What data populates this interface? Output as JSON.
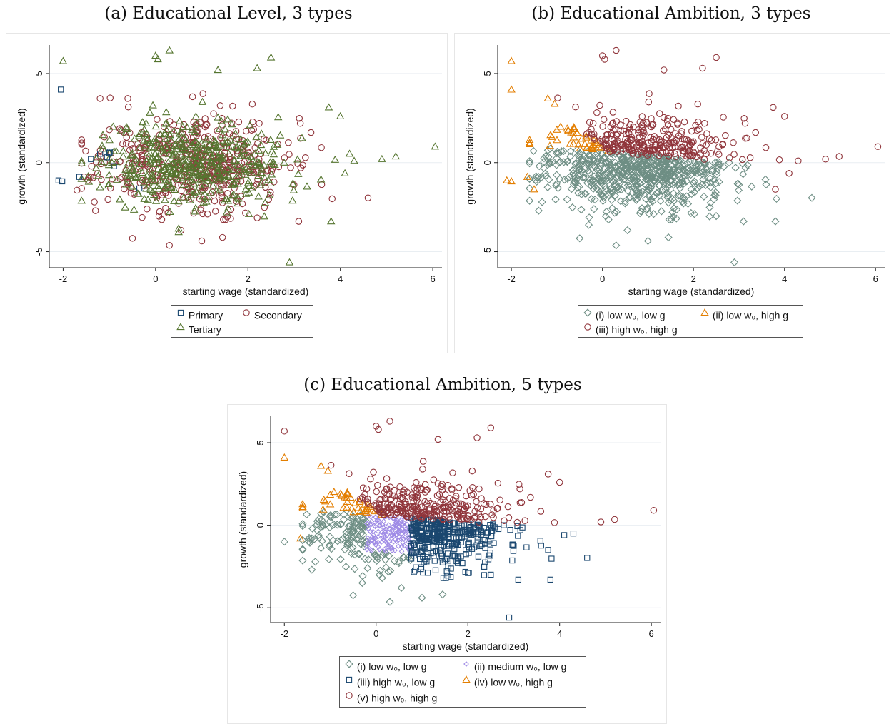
{
  "captions": {
    "a": "(a) Educational Level, 3 types",
    "b": "(b) Educational Ambition, 3 types",
    "c": "(c) Educational Ambition, 5 types"
  },
  "colors": {
    "navy": "#1a476f",
    "maroon": "#90353b",
    "olive": "#55752f",
    "orange": "#e37e00",
    "sage": "#6e8e84",
    "lavender": "#9f8be6"
  },
  "chart_data": [
    {
      "id": "a",
      "type": "scatter",
      "title": "(a) Educational Level, 3 types",
      "xlabel": "starting wage (standardized)",
      "ylabel": "growth (standardized)",
      "xlim": [
        -2.3,
        6.2
      ],
      "ylim": [
        -5.9,
        6.6
      ],
      "xticks": [
        -2,
        0,
        2,
        4,
        6
      ],
      "yticks": [
        -5,
        0,
        5
      ],
      "grid": "horizontal",
      "legend_position": "bottom",
      "series": [
        {
          "name": "Primary",
          "marker": "square",
          "color": "#1a476f",
          "points": [
            [
              -2.05,
              4.1
            ],
            [
              -2.1,
              -1.0
            ],
            [
              -2.02,
              -1.05
            ],
            [
              -1.65,
              -0.8
            ],
            [
              -1.4,
              0.2
            ],
            [
              -1.2,
              0.5
            ],
            [
              -1.05,
              0.3
            ],
            [
              -0.9,
              -0.2
            ],
            [
              -0.35,
              -1.45
            ],
            [
              -1.0,
              0.55
            ]
          ]
        },
        {
          "name": "Secondary",
          "marker": "circle",
          "color": "#90353b",
          "count": 550,
          "points": [
            [
              -0.5,
              -4.25
            ],
            [
              0.3,
              -4.65
            ],
            [
              0.55,
              -3.8
            ],
            [
              1.0,
              -4.4
            ],
            [
              1.45,
              -4.2
            ],
            [
              3.1,
              -3.3
            ],
            [
              2.2,
              -3.1
            ],
            [
              -0.6,
              3.6
            ],
            [
              -1.2,
              3.6
            ],
            [
              -1.55,
              -0.8
            ],
            [
              -1.7,
              -1.55
            ],
            [
              -1.3,
              -2.7
            ],
            [
              0.8,
              3.7
            ],
            [
              1.4,
              3.2
            ]
          ]
        },
        {
          "name": "Tertiary",
          "marker": "triangle",
          "color": "#55752f",
          "count": 600,
          "points": [
            [
              -2.0,
              5.7
            ],
            [
              0.0,
              6.0
            ],
            [
              0.05,
              5.8
            ],
            [
              0.3,
              6.3
            ],
            [
              1.35,
              5.2
            ],
            [
              2.2,
              5.3
            ],
            [
              2.5,
              5.9
            ],
            [
              6.05,
              0.9
            ],
            [
              4.9,
              0.2
            ],
            [
              5.2,
              0.35
            ],
            [
              4.0,
              2.6
            ],
            [
              3.75,
              3.1
            ],
            [
              2.9,
              -5.6
            ],
            [
              0.5,
              -3.9
            ],
            [
              0.5,
              -3.7
            ],
            [
              3.8,
              -3.3
            ],
            [
              4.2,
              0.5
            ],
            [
              4.3,
              0.1
            ],
            [
              4.1,
              -0.6
            ]
          ]
        }
      ]
    },
    {
      "id": "b",
      "type": "scatter",
      "title": "(b) Educational Ambition, 3 types",
      "xlabel": "starting wage (standardized)",
      "ylabel": "growth (standardized)",
      "xlim": [
        -2.3,
        6.2
      ],
      "ylim": [
        -5.9,
        6.6
      ],
      "xticks": [
        -2,
        0,
        2,
        4,
        6
      ],
      "yticks": [
        -5,
        0,
        5
      ],
      "grid": "horizontal",
      "legend_position": "bottom",
      "series": [
        {
          "name": "(i) low w₀, low g",
          "marker": "diamond",
          "color": "#6e8e84",
          "count": 600,
          "points": [
            [
              -0.5,
              -4.25
            ],
            [
              0.3,
              -4.65
            ],
            [
              0.55,
              -3.8
            ],
            [
              1.0,
              -4.4
            ],
            [
              1.45,
              -4.2
            ],
            [
              2.9,
              -5.6
            ],
            [
              -0.3,
              -3.5
            ],
            [
              -1.4,
              -2.7
            ],
            [
              3.8,
              -3.3
            ],
            [
              3.1,
              -3.3
            ],
            [
              2.5,
              -3.0
            ]
          ]
        },
        {
          "name": "(ii) low w₀, high g",
          "marker": "triangle",
          "color": "#e37e00",
          "count": 230,
          "points": [
            [
              -2.0,
              5.7
            ],
            [
              -2.0,
              4.1
            ],
            [
              -2.1,
              -1.0
            ],
            [
              -2.0,
              -1.05
            ],
            [
              -1.65,
              -0.8
            ],
            [
              -1.5,
              -1.5
            ],
            [
              -1.2,
              3.6
            ],
            [
              -1.05,
              3.3
            ]
          ]
        },
        {
          "name": "(iii) high w₀, high g",
          "marker": "circle",
          "color": "#90353b",
          "count": 420,
          "points": [
            [
              0.0,
              6.0
            ],
            [
              0.05,
              5.8
            ],
            [
              0.3,
              6.3
            ],
            [
              1.35,
              5.2
            ],
            [
              2.2,
              5.3
            ],
            [
              2.5,
              5.9
            ],
            [
              6.05,
              0.9
            ],
            [
              4.9,
              0.2
            ],
            [
              5.2,
              0.35
            ],
            [
              4.0,
              2.6
            ],
            [
              3.75,
              3.1
            ],
            [
              4.3,
              0.1
            ],
            [
              4.1,
              -0.6
            ],
            [
              3.8,
              -1.5
            ]
          ]
        }
      ]
    },
    {
      "id": "c",
      "type": "scatter",
      "title": "(c) Educational Ambition, 5 types",
      "xlabel": "starting wage (standardized)",
      "ylabel": "growth (standardized)",
      "xlim": [
        -2.3,
        6.2
      ],
      "ylim": [
        -5.9,
        6.6
      ],
      "xticks": [
        -2,
        0,
        2,
        4,
        6
      ],
      "yticks": [
        -5,
        0,
        5
      ],
      "grid": "horizontal",
      "legend_position": "bottom",
      "series": [
        {
          "name": "(i) low w₀, low g",
          "marker": "diamond",
          "color": "#6e8e84",
          "count": 220,
          "points": [
            [
              -0.5,
              -4.25
            ],
            [
              0.3,
              -4.65
            ],
            [
              0.55,
              -3.8
            ],
            [
              1.0,
              -4.4
            ],
            [
              1.45,
              -4.2
            ],
            [
              -0.3,
              -3.5
            ],
            [
              -1.4,
              -2.7
            ],
            [
              -2.0,
              -1.0
            ],
            [
              -1.6,
              -1.5
            ]
          ]
        },
        {
          "name": "(ii) medium w₀, low g",
          "marker": "diamond-small",
          "color": "#9f8be6",
          "count": 330,
          "points": []
        },
        {
          "name": "(iii) high w₀, low g",
          "marker": "square",
          "color": "#1a476f",
          "count": 380,
          "points": [
            [
              2.9,
              -5.6
            ],
            [
              3.8,
              -3.3
            ],
            [
              3.1,
              -3.3
            ],
            [
              2.5,
              -3.0
            ],
            [
              4.1,
              -0.6
            ],
            [
              4.3,
              -0.5
            ],
            [
              3.75,
              -1.5
            ],
            [
              2.0,
              -2.9
            ]
          ]
        },
        {
          "name": "(iv) low w₀, high g",
          "marker": "triangle",
          "color": "#e37e00",
          "count": 230,
          "points": [
            [
              -2.0,
              4.1
            ],
            [
              -1.65,
              -0.8
            ],
            [
              -1.2,
              3.6
            ],
            [
              -1.05,
              3.3
            ]
          ]
        },
        {
          "name": "(v) high w₀, high g",
          "marker": "circle",
          "color": "#90353b",
          "count": 420,
          "points": [
            [
              -2.0,
              5.7
            ],
            [
              0.0,
              6.0
            ],
            [
              0.05,
              5.8
            ],
            [
              0.3,
              6.3
            ],
            [
              1.35,
              5.2
            ],
            [
              2.2,
              5.3
            ],
            [
              2.5,
              5.9
            ],
            [
              6.05,
              0.9
            ],
            [
              4.9,
              0.2
            ],
            [
              5.2,
              0.35
            ],
            [
              4.0,
              2.6
            ],
            [
              3.75,
              3.1
            ]
          ]
        }
      ]
    }
  ],
  "legends": {
    "a": [
      {
        "label": "Primary",
        "marker": "square",
        "color": "#1a476f"
      },
      {
        "label": "Secondary",
        "marker": "circle",
        "color": "#90353b"
      },
      {
        "label": "Tertiary",
        "marker": "triangle",
        "color": "#55752f"
      }
    ],
    "b": [
      {
        "label": "(i) low w₀, low g",
        "marker": "diamond",
        "color": "#6e8e84"
      },
      {
        "label": "(ii) low w₀, high g",
        "marker": "triangle",
        "color": "#e37e00"
      },
      {
        "label": "(iii) high w₀, high g",
        "marker": "circle",
        "color": "#90353b"
      }
    ],
    "c": [
      {
        "label": "(i) low w₀, low g",
        "marker": "diamond",
        "color": "#6e8e84"
      },
      {
        "label": "(ii) medium w₀, low g",
        "marker": "diamond-small",
        "color": "#9f8be6"
      },
      {
        "label": "(iii) high w₀, low g",
        "marker": "square",
        "color": "#1a476f"
      },
      {
        "label": "(iv) low w₀, high g",
        "marker": "triangle",
        "color": "#e37e00"
      },
      {
        "label": "(v) high w₀, high g",
        "marker": "circle",
        "color": "#90353b"
      }
    ]
  }
}
